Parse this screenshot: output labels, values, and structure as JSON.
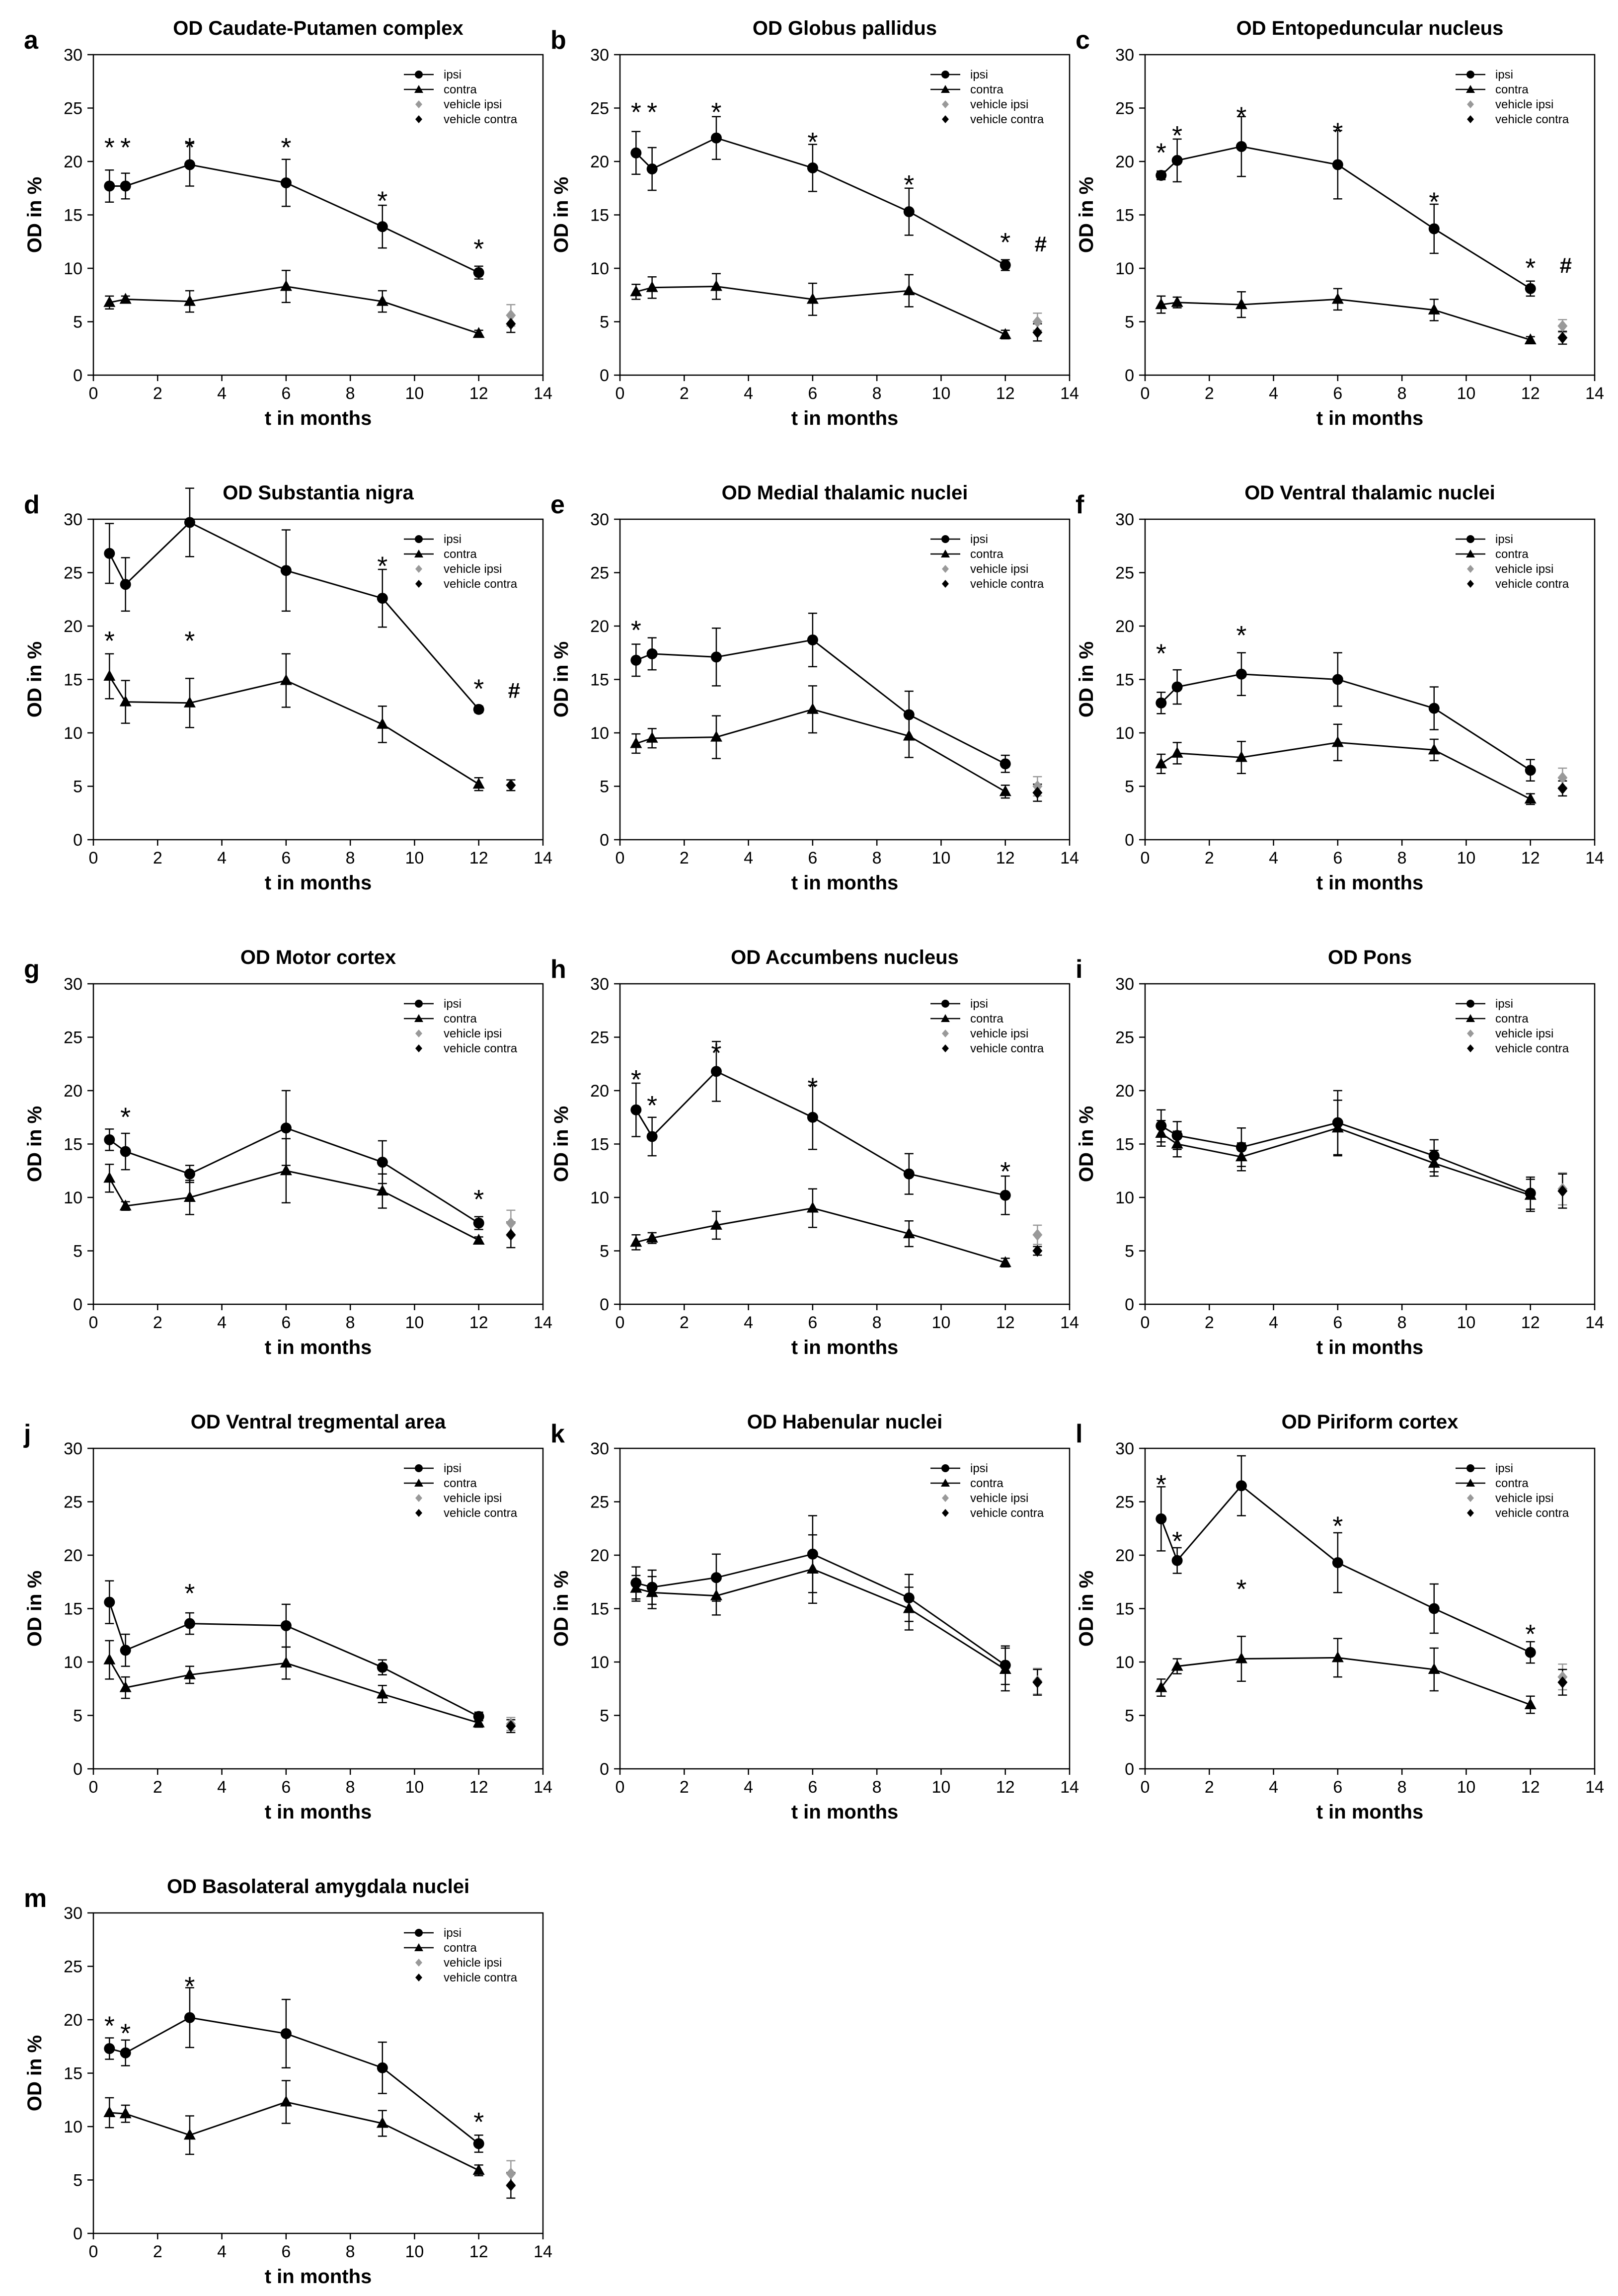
{
  "figure": {
    "legend_entries": [
      "ipsi",
      "contra",
      "vehicle ipsi",
      "vehicle contra"
    ],
    "xlabel": "t in months",
    "ylabel": "OD in %",
    "xticks": [
      0,
      2,
      4,
      6,
      8,
      10,
      12,
      14
    ],
    "yticks": [
      0,
      5,
      10,
      15,
      20,
      25,
      30
    ],
    "xlim": [
      0,
      14
    ],
    "ylim": [
      0,
      30
    ],
    "colors": {
      "ipsi": "#000000",
      "contra": "#000000",
      "vehicle_ipsi": "#999999",
      "vehicle_contra": "#000000"
    }
  },
  "chart_data": [
    {
      "letter": "a",
      "title": "OD Caudate-Putamen complex",
      "type": "line",
      "x": [
        0.5,
        1,
        3,
        6,
        9,
        12
      ],
      "series": [
        {
          "name": "ipsi",
          "values": [
            17.7,
            17.7,
            19.7,
            18.0,
            13.9,
            9.6
          ],
          "errors": [
            1.5,
            1.2,
            2.0,
            2.2,
            2.0,
            0.6
          ]
        },
        {
          "name": "contra",
          "values": [
            6.8,
            7.1,
            6.9,
            8.3,
            6.9,
            3.9
          ],
          "errors": [
            0.6,
            0.3,
            1.0,
            1.5,
            1.0,
            0.3
          ]
        }
      ],
      "vehicle": {
        "x": 13,
        "ipsi": [
          5.6,
          1.0
        ],
        "contra": [
          4.8,
          0.8
        ]
      },
      "annotations": [
        {
          "text": "*",
          "x": 0.5,
          "y": 21.5
        },
        {
          "text": "*",
          "x": 1,
          "y": 21.5
        },
        {
          "text": "*",
          "x": 3,
          "y": 21.5
        },
        {
          "text": "*",
          "x": 6,
          "y": 21.5
        },
        {
          "text": "*",
          "x": 9,
          "y": 16.5
        },
        {
          "text": "*",
          "x": 12,
          "y": 12.0
        }
      ]
    },
    {
      "letter": "b",
      "title": "OD Globus pallidus",
      "type": "line",
      "x": [
        0.5,
        1,
        3,
        6,
        9,
        12
      ],
      "series": [
        {
          "name": "ipsi",
          "values": [
            20.8,
            19.3,
            22.2,
            19.4,
            15.3,
            10.3
          ],
          "errors": [
            2.0,
            2.0,
            2.0,
            2.2,
            2.2,
            0.5
          ]
        },
        {
          "name": "contra",
          "values": [
            7.8,
            8.2,
            8.3,
            7.1,
            7.9,
            3.8
          ],
          "errors": [
            0.7,
            1.0,
            1.2,
            1.5,
            1.5,
            0.4
          ]
        }
      ],
      "vehicle": {
        "x": 13,
        "ipsi": [
          5.0,
          0.8
        ],
        "contra": [
          4.0,
          0.8
        ]
      },
      "annotations": [
        {
          "text": "*",
          "x": 0.5,
          "y": 24.8
        },
        {
          "text": "*",
          "x": 1,
          "y": 24.8
        },
        {
          "text": "*",
          "x": 3,
          "y": 24.8
        },
        {
          "text": "*",
          "x": 6,
          "y": 22.0
        },
        {
          "text": "*",
          "x": 9,
          "y": 18.0
        },
        {
          "text": "*",
          "x": 12,
          "y": 12.6
        },
        {
          "text": "#",
          "x": 13.1,
          "y": 12.6
        }
      ]
    },
    {
      "letter": "c",
      "title": "OD Entopeduncular nucleus",
      "type": "line",
      "x": [
        0.5,
        1,
        3,
        6,
        9,
        12
      ],
      "series": [
        {
          "name": "ipsi",
          "values": [
            18.7,
            20.1,
            21.4,
            19.7,
            13.7,
            8.1
          ],
          "errors": [
            0.4,
            2.0,
            2.8,
            3.2,
            2.3,
            0.7
          ]
        },
        {
          "name": "contra",
          "values": [
            6.6,
            6.8,
            6.6,
            7.1,
            6.1,
            3.3
          ],
          "errors": [
            0.8,
            0.5,
            1.2,
            1.0,
            1.0,
            0.3
          ]
        }
      ],
      "vehicle": {
        "x": 13,
        "ipsi": [
          4.6,
          0.6
        ],
        "contra": [
          3.5,
          0.6
        ]
      },
      "annotations": [
        {
          "text": "*",
          "x": 0.5,
          "y": 21.0
        },
        {
          "text": "*",
          "x": 1,
          "y": 22.6
        },
        {
          "text": "*",
          "x": 3,
          "y": 24.4
        },
        {
          "text": "*",
          "x": 6,
          "y": 22.9
        },
        {
          "text": "*",
          "x": 9,
          "y": 16.4
        },
        {
          "text": "*",
          "x": 12,
          "y": 10.2
        },
        {
          "text": "#",
          "x": 13.1,
          "y": 10.6
        }
      ]
    },
    {
      "letter": "d",
      "title": "OD Substantia nigra",
      "type": "line",
      "x": [
        0.5,
        1,
        3,
        6,
        9,
        12
      ],
      "series": [
        {
          "name": "ipsi",
          "values": [
            26.8,
            23.9,
            29.7,
            25.2,
            22.6,
            12.2
          ],
          "errors": [
            2.8,
            2.5,
            3.2,
            3.8,
            2.7,
            0.3
          ]
        },
        {
          "name": "contra",
          "values": [
            15.3,
            12.9,
            12.8,
            14.9,
            10.8,
            5.2
          ],
          "errors": [
            2.1,
            2.0,
            2.3,
            2.5,
            1.7,
            0.6
          ]
        }
      ],
      "vehicle": {
        "x": 13,
        "ipsi": [
          5.1,
          0.5
        ],
        "contra": [
          5.1,
          0.5
        ]
      },
      "annotations": [
        {
          "text": "*",
          "x": 0.5,
          "y": 18.8
        },
        {
          "text": "*",
          "x": 3,
          "y": 18.8
        },
        {
          "text": "*",
          "x": 9,
          "y": 25.8
        },
        {
          "text": "*",
          "x": 12,
          "y": 14.3
        },
        {
          "text": "#",
          "x": 13.1,
          "y": 14.3
        }
      ]
    },
    {
      "letter": "e",
      "title": "OD Medial thalamic nuclei",
      "type": "line",
      "x": [
        0.5,
        1,
        3,
        6,
        9,
        12
      ],
      "series": [
        {
          "name": "ipsi",
          "values": [
            16.8,
            17.4,
            17.1,
            18.7,
            11.7,
            7.1
          ],
          "errors": [
            1.5,
            1.5,
            2.7,
            2.5,
            2.2,
            0.8
          ]
        },
        {
          "name": "contra",
          "values": [
            9.0,
            9.5,
            9.6,
            12.2,
            9.7,
            4.5
          ],
          "errors": [
            0.9,
            0.9,
            2.0,
            2.2,
            2.0,
            0.6
          ]
        }
      ],
      "vehicle": {
        "x": 13,
        "ipsi": [
          5.0,
          0.9
        ],
        "contra": [
          4.4,
          0.8
        ]
      },
      "annotations": [
        {
          "text": "*",
          "x": 0.5,
          "y": 19.8
        }
      ]
    },
    {
      "letter": "f",
      "title": "OD Ventral thalamic nuclei",
      "type": "line",
      "x": [
        0.5,
        1,
        3,
        6,
        9,
        12
      ],
      "series": [
        {
          "name": "ipsi",
          "values": [
            12.8,
            14.3,
            15.5,
            15.0,
            12.3,
            6.5
          ],
          "errors": [
            1.0,
            1.6,
            2.0,
            2.5,
            2.0,
            1.0
          ]
        },
        {
          "name": "contra",
          "values": [
            7.1,
            8.1,
            7.7,
            9.1,
            8.4,
            3.8
          ],
          "errors": [
            0.9,
            1.0,
            1.5,
            1.7,
            1.0,
            0.5
          ]
        }
      ],
      "vehicle": {
        "x": 13,
        "ipsi": [
          5.8,
          0.9
        ],
        "contra": [
          4.8,
          0.7
        ]
      },
      "annotations": [
        {
          "text": "*",
          "x": 0.5,
          "y": 17.6
        },
        {
          "text": "*",
          "x": 3,
          "y": 19.3
        }
      ]
    },
    {
      "letter": "g",
      "title": "OD Motor cortex",
      "type": "line",
      "x": [
        0.5,
        1,
        3,
        6,
        9,
        12
      ],
      "series": [
        {
          "name": "ipsi",
          "values": [
            15.4,
            14.3,
            12.2,
            16.5,
            13.3,
            7.6
          ],
          "errors": [
            1.0,
            1.7,
            0.8,
            3.5,
            2.0,
            0.6
          ]
        },
        {
          "name": "contra",
          "values": [
            11.8,
            9.2,
            10.0,
            12.5,
            10.6,
            6.0
          ],
          "errors": [
            1.3,
            0.4,
            1.6,
            3.0,
            1.6,
            0.3
          ]
        }
      ],
      "vehicle": {
        "x": 13,
        "ipsi": [
          7.6,
          1.2
        ],
        "contra": [
          6.5,
          1.2
        ]
      },
      "annotations": [
        {
          "text": "*",
          "x": 1,
          "y": 17.7
        },
        {
          "text": "*",
          "x": 12,
          "y": 10.0
        }
      ]
    },
    {
      "letter": "h",
      "title": "OD Accumbens nucleus",
      "type": "line",
      "x": [
        0.5,
        1,
        3,
        6,
        9,
        12
      ],
      "series": [
        {
          "name": "ipsi",
          "values": [
            18.2,
            15.7,
            21.8,
            17.5,
            12.2,
            10.2
          ],
          "errors": [
            2.5,
            1.8,
            2.8,
            3.0,
            1.9,
            1.8
          ]
        },
        {
          "name": "contra",
          "values": [
            5.8,
            6.2,
            7.4,
            9.0,
            6.6,
            3.9
          ],
          "errors": [
            0.7,
            0.5,
            1.3,
            1.8,
            1.2,
            0.4
          ]
        }
      ],
      "vehicle": {
        "x": 13,
        "ipsi": [
          6.5,
          0.9
        ],
        "contra": [
          5.0,
          0.4
        ]
      },
      "annotations": [
        {
          "text": "*",
          "x": 0.5,
          "y": 21.2
        },
        {
          "text": "*",
          "x": 1,
          "y": 18.8
        },
        {
          "text": "*",
          "x": 3,
          "y": 23.7
        },
        {
          "text": "*",
          "x": 6,
          "y": 20.5
        },
        {
          "text": "*",
          "x": 12,
          "y": 12.6
        }
      ]
    },
    {
      "letter": "i",
      "title": "OD Pons",
      "type": "line",
      "x": [
        0.5,
        1,
        3,
        6,
        9,
        12
      ],
      "series": [
        {
          "name": "ipsi",
          "values": [
            16.7,
            15.8,
            14.7,
            17.0,
            13.9,
            10.4
          ],
          "errors": [
            1.5,
            1.3,
            1.8,
            3.0,
            1.5,
            1.5
          ]
        },
        {
          "name": "contra",
          "values": [
            16.0,
            15.0,
            13.8,
            16.5,
            13.2,
            10.2
          ],
          "errors": [
            1.2,
            1.2,
            1.3,
            2.6,
            1.2,
            1.5
          ]
        }
      ],
      "vehicle": {
        "x": 13,
        "ipsi": [
          10.8,
          1.5
        ],
        "contra": [
          10.6,
          1.6
        ]
      },
      "annotations": []
    },
    {
      "letter": "j",
      "title": "OD Ventral tregmental area",
      "type": "line",
      "x": [
        0.5,
        1,
        3,
        6,
        9,
        12
      ],
      "series": [
        {
          "name": "ipsi",
          "values": [
            15.6,
            11.1,
            13.6,
            13.4,
            9.5,
            4.9
          ],
          "errors": [
            2.0,
            1.5,
            1.0,
            2.0,
            0.7,
            0.4
          ]
        },
        {
          "name": "contra",
          "values": [
            10.2,
            7.6,
            8.8,
            9.9,
            7.0,
            4.3
          ],
          "errors": [
            1.8,
            1.0,
            0.8,
            1.5,
            0.8,
            0.4
          ]
        }
      ],
      "vehicle": {
        "x": 13,
        "ipsi": [
          4.2,
          0.6
        ],
        "contra": [
          4.0,
          0.6
        ]
      },
      "annotations": [
        {
          "text": "*",
          "x": 3,
          "y": 16.6
        }
      ]
    },
    {
      "letter": "k",
      "title": "OD Habenular nuclei",
      "type": "line",
      "x": [
        0.5,
        1,
        3,
        6,
        9,
        12
      ],
      "series": [
        {
          "name": "ipsi",
          "values": [
            17.4,
            17.0,
            17.9,
            20.1,
            16.0,
            9.7
          ],
          "errors": [
            1.5,
            1.6,
            2.2,
            3.6,
            2.2,
            1.8
          ]
        },
        {
          "name": "contra",
          "values": [
            16.9,
            16.5,
            16.2,
            18.7,
            15.0,
            9.3
          ],
          "errors": [
            1.2,
            1.5,
            1.8,
            3.2,
            2.0,
            2.0
          ]
        }
      ],
      "vehicle": {
        "x": 13,
        "ipsi": [
          8.2,
          1.2
        ],
        "contra": [
          8.1,
          1.2
        ]
      },
      "annotations": []
    },
    {
      "letter": "l",
      "title": "OD Piriform cortex",
      "type": "line",
      "x": [
        0.5,
        1,
        3,
        6,
        9,
        12
      ],
      "series": [
        {
          "name": "ipsi",
          "values": [
            23.4,
            19.5,
            26.5,
            19.3,
            15.0,
            10.9
          ],
          "errors": [
            3.0,
            1.2,
            2.8,
            2.8,
            2.3,
            1.0
          ]
        },
        {
          "name": "contra",
          "values": [
            7.6,
            9.6,
            10.3,
            10.4,
            9.3,
            6.0
          ],
          "errors": [
            0.8,
            0.7,
            2.1,
            1.8,
            2.0,
            0.8
          ]
        }
      ],
      "vehicle": {
        "x": 13,
        "ipsi": [
          8.6,
          1.2
        ],
        "contra": [
          8.1,
          1.2
        ]
      },
      "annotations": [
        {
          "text": "*",
          "x": 0.5,
          "y": 26.8
        },
        {
          "text": "*",
          "x": 1,
          "y": 21.5
        },
        {
          "text": "*",
          "x": 3,
          "y": 17.0
        },
        {
          "text": "*",
          "x": 6,
          "y": 22.9
        },
        {
          "text": "*",
          "x": 12,
          "y": 12.8
        }
      ]
    },
    {
      "letter": "m",
      "title": "OD Basolateral amygdala nuclei",
      "type": "line",
      "x": [
        0.5,
        1,
        3,
        6,
        9,
        12
      ],
      "series": [
        {
          "name": "ipsi",
          "values": [
            17.3,
            16.9,
            20.2,
            18.7,
            15.5,
            8.4
          ],
          "errors": [
            1.0,
            1.2,
            2.8,
            3.2,
            2.4,
            0.8
          ]
        },
        {
          "name": "contra",
          "values": [
            11.3,
            11.2,
            9.2,
            12.3,
            10.3,
            5.9
          ],
          "errors": [
            1.4,
            0.8,
            1.8,
            2.0,
            1.2,
            0.5
          ]
        }
      ],
      "vehicle": {
        "x": 13,
        "ipsi": [
          5.6,
          1.2
        ],
        "contra": [
          4.5,
          1.2
        ]
      },
      "annotations": [
        {
          "text": "*",
          "x": 0.5,
          "y": 19.6
        },
        {
          "text": "*",
          "x": 1,
          "y": 18.9
        },
        {
          "text": "*",
          "x": 3,
          "y": 23.3
        },
        {
          "text": "*",
          "x": 12,
          "y": 10.6
        }
      ]
    }
  ]
}
